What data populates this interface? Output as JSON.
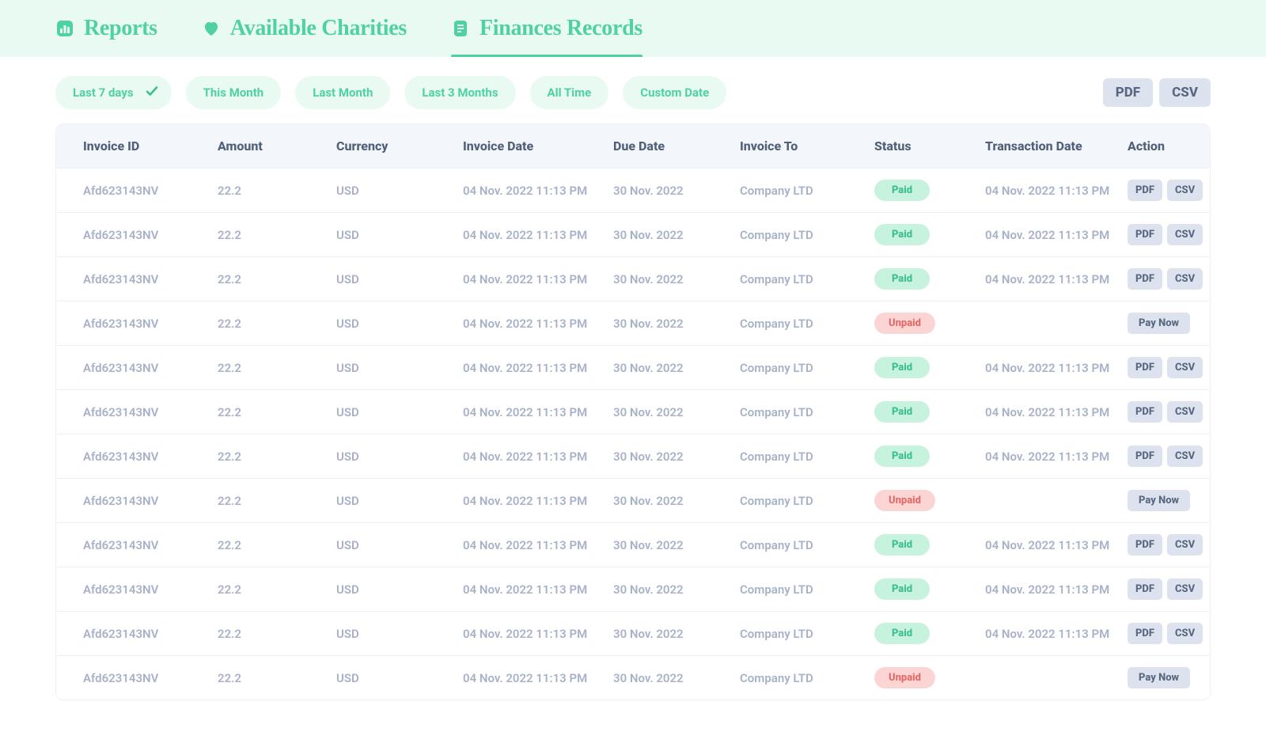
{
  "tabs": {
    "reports": "Reports",
    "charities": "Available Charities",
    "finances": "Finances Records",
    "active": "finances"
  },
  "filters": {
    "items": [
      {
        "label": "Last 7 days",
        "selected": true
      },
      {
        "label": "This Month",
        "selected": false
      },
      {
        "label": "Last Month",
        "selected": false
      },
      {
        "label": "Last 3 Months",
        "selected": false
      },
      {
        "label": "All Time",
        "selected": false
      },
      {
        "label": "Custom Date",
        "selected": false
      }
    ]
  },
  "export": {
    "pdf": "PDF",
    "csv": "CSV"
  },
  "table": {
    "columns": [
      "Invoice ID",
      "Amount",
      "Currency",
      "Invoice Date",
      "Due Date",
      "Invoice To",
      "Status",
      "Transaction Date",
      "Action"
    ],
    "action_labels": {
      "pdf": "PDF",
      "csv": "CSV",
      "pay": "Pay Now"
    },
    "status_labels": {
      "paid": "Paid",
      "unpaid": "Unpaid"
    },
    "rows": [
      {
        "invoice_id": "Afd623143NV",
        "amount": "22.2",
        "currency": "USD",
        "invoice_date": "04 Nov. 2022 11:13 PM",
        "due_date": "30 Nov. 2022",
        "invoice_to": "Company LTD",
        "status": "paid",
        "tx_date": "04 Nov. 2022 11:13 PM"
      },
      {
        "invoice_id": "Afd623143NV",
        "amount": "22.2",
        "currency": "USD",
        "invoice_date": "04 Nov. 2022 11:13 PM",
        "due_date": "30 Nov. 2022",
        "invoice_to": "Company LTD",
        "status": "paid",
        "tx_date": "04 Nov. 2022 11:13 PM"
      },
      {
        "invoice_id": "Afd623143NV",
        "amount": "22.2",
        "currency": "USD",
        "invoice_date": "04 Nov. 2022 11:13 PM",
        "due_date": "30 Nov. 2022",
        "invoice_to": "Company LTD",
        "status": "paid",
        "tx_date": "04 Nov. 2022 11:13 PM"
      },
      {
        "invoice_id": "Afd623143NV",
        "amount": "22.2",
        "currency": "USD",
        "invoice_date": "04 Nov. 2022 11:13 PM",
        "due_date": "30 Nov. 2022",
        "invoice_to": "Company LTD",
        "status": "unpaid",
        "tx_date": ""
      },
      {
        "invoice_id": "Afd623143NV",
        "amount": "22.2",
        "currency": "USD",
        "invoice_date": "04 Nov. 2022 11:13 PM",
        "due_date": "30 Nov. 2022",
        "invoice_to": "Company LTD",
        "status": "paid",
        "tx_date": "04 Nov. 2022 11:13 PM"
      },
      {
        "invoice_id": "Afd623143NV",
        "amount": "22.2",
        "currency": "USD",
        "invoice_date": "04 Nov. 2022 11:13 PM",
        "due_date": "30 Nov. 2022",
        "invoice_to": "Company LTD",
        "status": "paid",
        "tx_date": "04 Nov. 2022 11:13 PM"
      },
      {
        "invoice_id": "Afd623143NV",
        "amount": "22.2",
        "currency": "USD",
        "invoice_date": "04 Nov. 2022 11:13 PM",
        "due_date": "30 Nov. 2022",
        "invoice_to": "Company LTD",
        "status": "paid",
        "tx_date": "04 Nov. 2022 11:13 PM"
      },
      {
        "invoice_id": "Afd623143NV",
        "amount": "22.2",
        "currency": "USD",
        "invoice_date": "04 Nov. 2022 11:13 PM",
        "due_date": "30 Nov. 2022",
        "invoice_to": "Company LTD",
        "status": "unpaid",
        "tx_date": ""
      },
      {
        "invoice_id": "Afd623143NV",
        "amount": "22.2",
        "currency": "USD",
        "invoice_date": "04 Nov. 2022 11:13 PM",
        "due_date": "30 Nov. 2022",
        "invoice_to": "Company LTD",
        "status": "paid",
        "tx_date": "04 Nov. 2022 11:13 PM"
      },
      {
        "invoice_id": "Afd623143NV",
        "amount": "22.2",
        "currency": "USD",
        "invoice_date": "04 Nov. 2022 11:13 PM",
        "due_date": "30 Nov. 2022",
        "invoice_to": "Company LTD",
        "status": "paid",
        "tx_date": "04 Nov. 2022 11:13 PM"
      },
      {
        "invoice_id": "Afd623143NV",
        "amount": "22.2",
        "currency": "USD",
        "invoice_date": "04 Nov. 2022 11:13 PM",
        "due_date": "30 Nov. 2022",
        "invoice_to": "Company LTD",
        "status": "paid",
        "tx_date": "04 Nov. 2022 11:13 PM"
      },
      {
        "invoice_id": "Afd623143NV",
        "amount": "22.2",
        "currency": "USD",
        "invoice_date": "04 Nov. 2022 11:13 PM",
        "due_date": "30 Nov. 2022",
        "invoice_to": "Company LTD",
        "status": "unpaid",
        "tx_date": ""
      }
    ]
  },
  "colors": {
    "accent": "#4FD1A2",
    "mint_bg": "#E9FAF2",
    "header_bg": "#F3F6FB",
    "text_muted": "#A7B1C7",
    "chip_paid_bg": "#C7F2DE",
    "chip_unpaid_bg": "#FBD4D4",
    "action_bg": "#DDE3EE"
  }
}
